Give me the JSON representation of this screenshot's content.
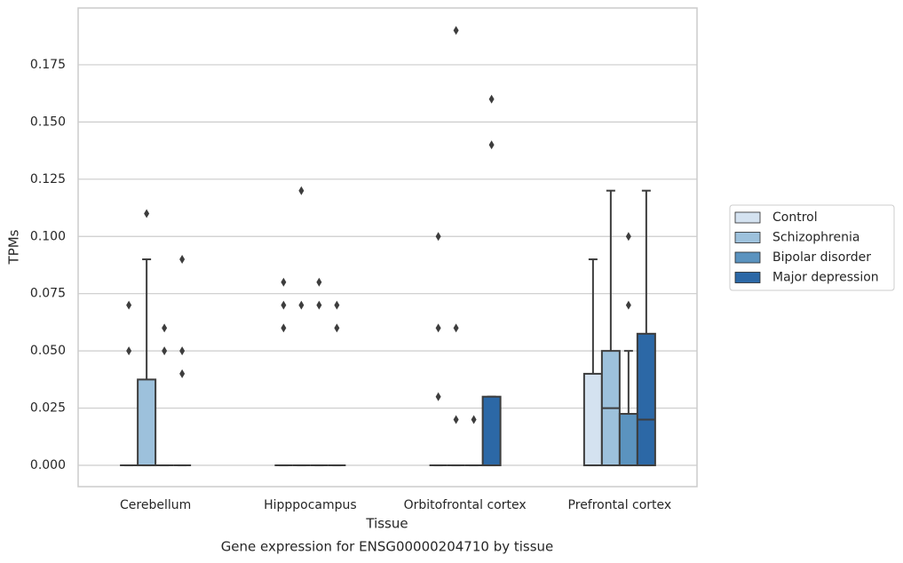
{
  "chart_data": {
    "type": "box",
    "title": "Gene expression for ENSG00000204710 by tissue",
    "x_label": "Tissue",
    "y_label": "TPMs",
    "categories": [
      "Cerebellum",
      "Hipppocampus",
      "Orbitofrontal cortex",
      "Prefrontal cortex"
    ],
    "ylim": [
      -0.0093,
      0.1998
    ],
    "yticks": [
      {
        "value": 0,
        "label": "0.000"
      },
      {
        "value": 0.025,
        "label": "0.025"
      },
      {
        "value": 0.05,
        "label": "0.050"
      },
      {
        "value": 0.075,
        "label": "0.075"
      },
      {
        "value": 0.1,
        "label": "0.100"
      },
      {
        "value": 0.125,
        "label": "0.125"
      },
      {
        "value": 0.15,
        "label": "0.150"
      },
      {
        "value": 0.175,
        "label": "0.175"
      }
    ],
    "grid": true,
    "legend": "right",
    "series": [
      {
        "name": "Control",
        "color": "#d4e2f0",
        "boxes": [
          {
            "min": 0,
            "q1": 0,
            "median": 0,
            "q3": 0,
            "max": 0,
            "outliers": [
              0.07,
              0.05
            ]
          },
          {
            "min": 0,
            "q1": 0,
            "median": 0,
            "q3": 0,
            "max": 0,
            "outliers": [
              0.08,
              0.07,
              0.06
            ]
          },
          {
            "min": 0,
            "q1": 0,
            "median": 0,
            "q3": 0,
            "max": 0,
            "outliers": [
              0.1,
              0.06,
              0.03
            ]
          },
          {
            "min": 0,
            "q1": 0,
            "median": 0,
            "q3": 0.04,
            "max": 0.09,
            "outliers": []
          }
        ]
      },
      {
        "name": "Schizophrenia",
        "color": "#9dc1dc",
        "boxes": [
          {
            "min": 0,
            "q1": 0,
            "median": 0,
            "q3": 0.0375,
            "max": 0.09,
            "outliers": [
              0.11
            ]
          },
          {
            "min": 0,
            "q1": 0,
            "median": 0,
            "q3": 0,
            "max": 0,
            "outliers": [
              0.12,
              0.07
            ]
          },
          {
            "min": 0,
            "q1": 0,
            "median": 0,
            "q3": 0,
            "max": 0,
            "outliers": [
              0.19,
              0.06,
              0.02
            ]
          },
          {
            "min": 0,
            "q1": 0,
            "median": 0.025,
            "q3": 0.05,
            "max": 0.12,
            "outliers": []
          }
        ]
      },
      {
        "name": "Bipolar disorder",
        "color": "#5b93bf",
        "boxes": [
          {
            "min": 0,
            "q1": 0,
            "median": 0,
            "q3": 0,
            "max": 0,
            "outliers": [
              0.06,
              0.05
            ]
          },
          {
            "min": 0,
            "q1": 0,
            "median": 0,
            "q3": 0,
            "max": 0,
            "outliers": [
              0.08,
              0.07
            ]
          },
          {
            "min": 0,
            "q1": 0,
            "median": 0,
            "q3": 0,
            "max": 0,
            "outliers": [
              0.02
            ]
          },
          {
            "min": 0,
            "q1": 0,
            "median": 0,
            "q3": 0.0225,
            "max": 0.05,
            "outliers": [
              0.1,
              0.07
            ]
          }
        ]
      },
      {
        "name": "Major depression",
        "color": "#2c68a6",
        "boxes": [
          {
            "min": 0,
            "q1": 0,
            "median": 0,
            "q3": 0,
            "max": 0,
            "outliers": [
              0.09,
              0.05,
              0.04
            ]
          },
          {
            "min": 0,
            "q1": 0,
            "median": 0,
            "q3": 0,
            "max": 0,
            "outliers": [
              0.07,
              0.06
            ]
          },
          {
            "min": 0,
            "q1": 0,
            "median": 0,
            "q3": 0.03,
            "max": 0.03,
            "outliers": [
              0.16,
              0.14
            ]
          },
          {
            "min": 0,
            "q1": 0,
            "median": 0.02,
            "q3": 0.0575,
            "max": 0.12,
            "outliers": []
          }
        ]
      }
    ]
  }
}
